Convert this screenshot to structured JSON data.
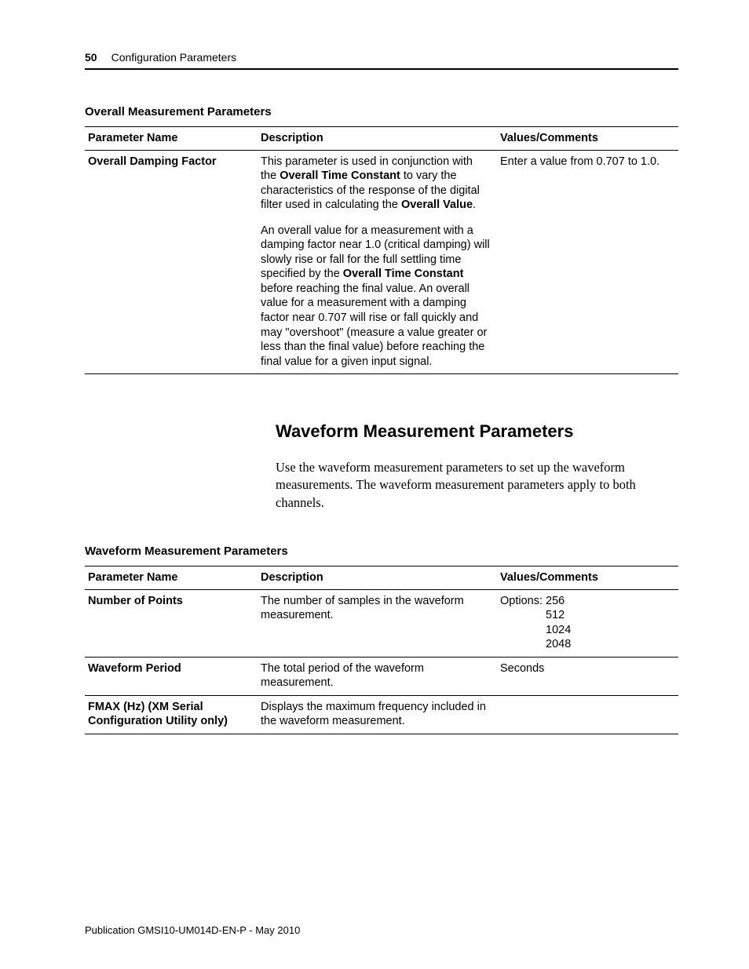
{
  "page": {
    "number": "50",
    "chapter": "Configuration Parameters"
  },
  "table1": {
    "caption": "Overall Measurement Parameters",
    "headers": {
      "name": "Parameter Name",
      "desc": "Description",
      "val": "Values/Comments"
    },
    "row": {
      "name": "Overall Damping Factor",
      "desc_p1_a": "This parameter is used in conjunction with the ",
      "desc_p1_bold1": "Overall Time Constant",
      "desc_p1_b": " to vary the characteristics of the response of the digital filter used in calculating the ",
      "desc_p1_bold2": "Overall Value",
      "desc_p1_c": ".",
      "desc_p2_a": "An overall value for a measurement with a damping factor near 1.0 (critical damping) will slowly rise or fall for the full settling time specified by the ",
      "desc_p2_bold1": "Overall Time Constant",
      "desc_p2_b": " before reaching the final value. An overall value for a measurement with a damping factor near 0.707 will rise or fall quickly and may \"overshoot\" (measure a value greater or less than the final value) before reaching the final value for a given input signal.",
      "val": "Enter a value from 0.707 to 1.0."
    }
  },
  "section": {
    "heading": "Waveform Measurement Parameters",
    "body": "Use the waveform measurement parameters to set up the waveform measurements. The waveform measurement parameters apply to both channels."
  },
  "table2": {
    "caption": "Waveform Measurement Parameters",
    "headers": {
      "name": "Parameter Name",
      "desc": "Description",
      "val": "Values/Comments"
    },
    "rows": [
      {
        "name": "Number of Points",
        "desc": "The number of samples in the waveform measurement.",
        "val_label": "Options:",
        "val_o1": "256",
        "val_o2": "512",
        "val_o3": "1024",
        "val_o4": "2048"
      },
      {
        "name": "Waveform Period",
        "desc": "The total period of the waveform measurement.",
        "val": "Seconds"
      },
      {
        "name": "FMAX (Hz) (XM Serial Configuration Utility only)",
        "desc": "Displays the maximum frequency included in the waveform measurement.",
        "val": ""
      }
    ]
  },
  "footer": "Publication GMSI10-UM014D-EN-P - May 2010"
}
